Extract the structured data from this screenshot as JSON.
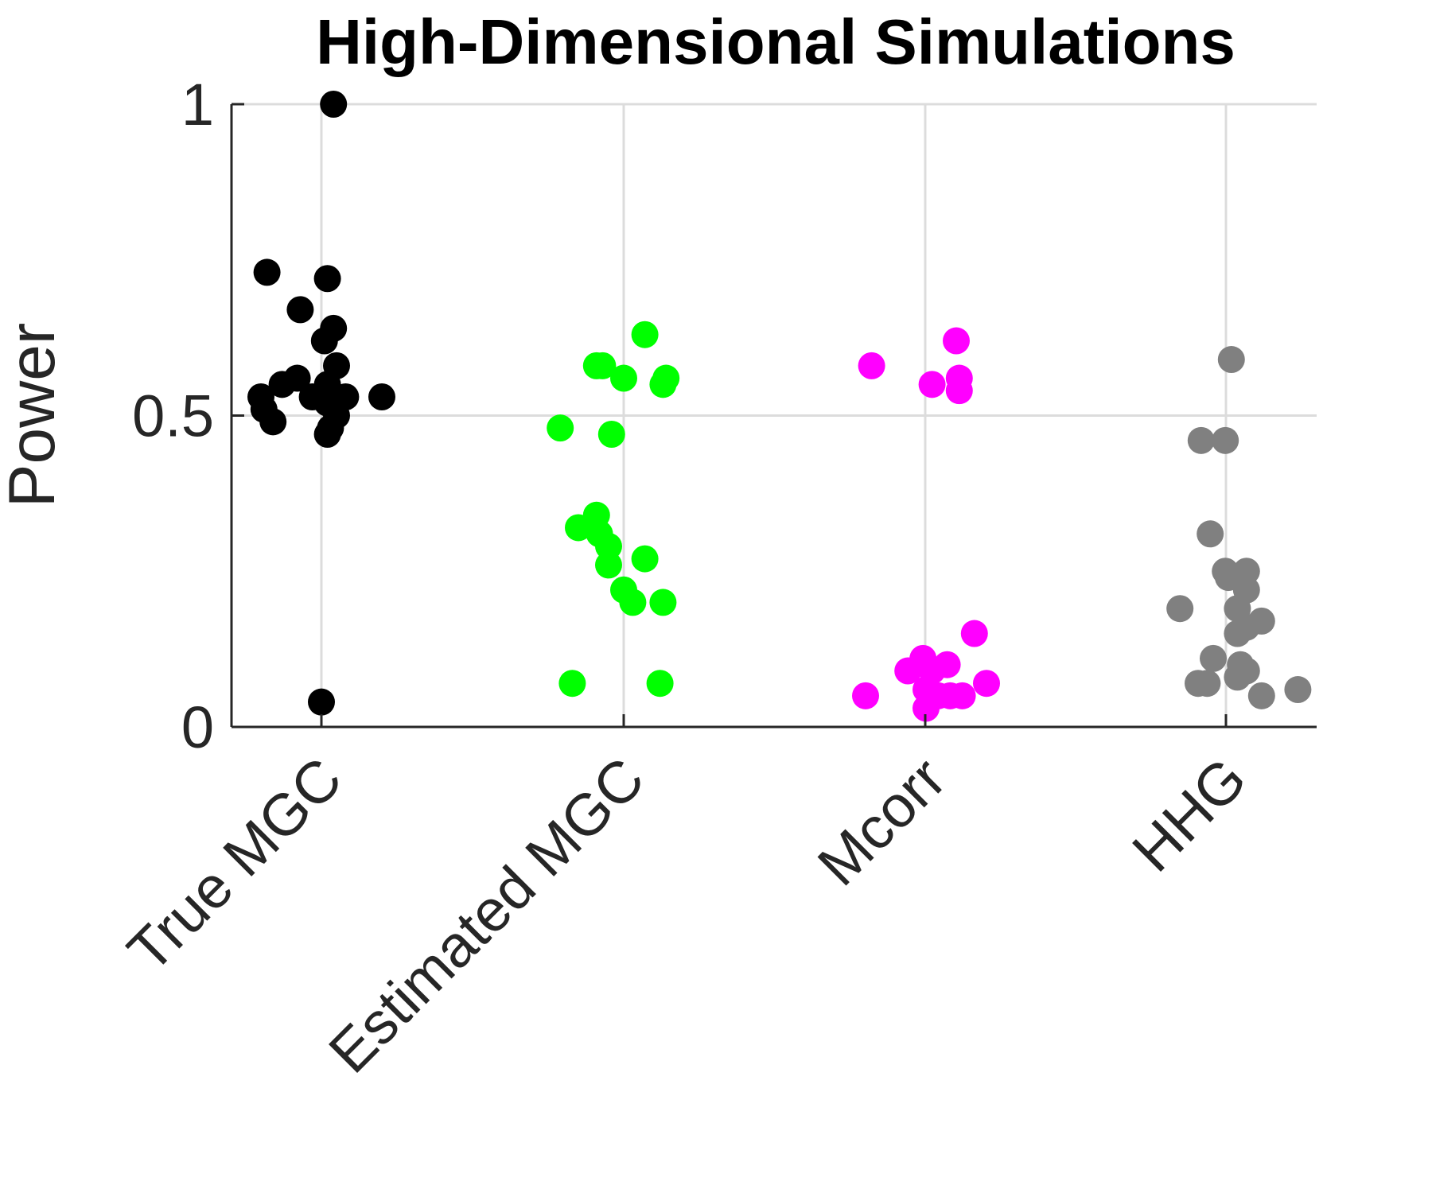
{
  "chart_data": {
    "type": "scatter",
    "title": "High-Dimensional Simulations",
    "xlabel": "",
    "ylabel": "Power",
    "ylim": [
      0,
      1
    ],
    "yticks": [
      "0",
      "0.5",
      "1"
    ],
    "grid": true,
    "categories": [
      "True MGC",
      "Estimated MGC",
      "Mcorr",
      "HHG"
    ],
    "series": [
      {
        "color": "#000000",
        "points": [
          {
            "x": 1.04,
            "y": 1.0
          },
          {
            "x": 0.82,
            "y": 0.73
          },
          {
            "x": 1.02,
            "y": 0.72
          },
          {
            "x": 0.93,
            "y": 0.67
          },
          {
            "x": 1.04,
            "y": 0.64
          },
          {
            "x": 1.01,
            "y": 0.62
          },
          {
            "x": 1.05,
            "y": 0.58
          },
          {
            "x": 0.92,
            "y": 0.56
          },
          {
            "x": 0.87,
            "y": 0.55
          },
          {
            "x": 1.02,
            "y": 0.55
          },
          {
            "x": 0.8,
            "y": 0.53
          },
          {
            "x": 1.08,
            "y": 0.53
          },
          {
            "x": 1.2,
            "y": 0.53
          },
          {
            "x": 0.97,
            "y": 0.53
          },
          {
            "x": 1.02,
            "y": 0.52
          },
          {
            "x": 0.81,
            "y": 0.51
          },
          {
            "x": 1.05,
            "y": 0.5
          },
          {
            "x": 0.84,
            "y": 0.49
          },
          {
            "x": 1.03,
            "y": 0.48
          },
          {
            "x": 1.02,
            "y": 0.47
          },
          {
            "x": 1.0,
            "y": 0.04
          }
        ]
      },
      {
        "color": "#00ff00",
        "points": [
          {
            "x": 2.07,
            "y": 0.63
          },
          {
            "x": 1.91,
            "y": 0.58
          },
          {
            "x": 1.93,
            "y": 0.58
          },
          {
            "x": 2.0,
            "y": 0.56
          },
          {
            "x": 2.14,
            "y": 0.56
          },
          {
            "x": 2.13,
            "y": 0.55
          },
          {
            "x": 1.79,
            "y": 0.48
          },
          {
            "x": 1.96,
            "y": 0.47
          },
          {
            "x": 1.91,
            "y": 0.34
          },
          {
            "x": 1.85,
            "y": 0.32
          },
          {
            "x": 1.92,
            "y": 0.31
          },
          {
            "x": 1.95,
            "y": 0.29
          },
          {
            "x": 2.07,
            "y": 0.27
          },
          {
            "x": 1.95,
            "y": 0.26
          },
          {
            "x": 2.0,
            "y": 0.22
          },
          {
            "x": 2.03,
            "y": 0.2
          },
          {
            "x": 2.13,
            "y": 0.2
          },
          {
            "x": 1.83,
            "y": 0.07
          },
          {
            "x": 2.12,
            "y": 0.07
          }
        ]
      },
      {
        "color": "#ff00ff",
        "points": [
          {
            "x": 3.1,
            "y": 0.62
          },
          {
            "x": 2.82,
            "y": 0.58
          },
          {
            "x": 3.11,
            "y": 0.56
          },
          {
            "x": 3.02,
            "y": 0.55
          },
          {
            "x": 3.11,
            "y": 0.54
          },
          {
            "x": 3.16,
            "y": 0.15
          },
          {
            "x": 2.99,
            "y": 0.11
          },
          {
            "x": 3.07,
            "y": 0.1
          },
          {
            "x": 2.94,
            "y": 0.09
          },
          {
            "x": 3.02,
            "y": 0.09
          },
          {
            "x": 3.2,
            "y": 0.07
          },
          {
            "x": 3.0,
            "y": 0.06
          },
          {
            "x": 3.04,
            "y": 0.05
          },
          {
            "x": 3.08,
            "y": 0.05
          },
          {
            "x": 3.12,
            "y": 0.05
          },
          {
            "x": 2.8,
            "y": 0.05
          },
          {
            "x": 3.0,
            "y": 0.03
          }
        ]
      },
      {
        "color": "#808080",
        "points": [
          {
            "x": 4.01,
            "y": 0.59
          },
          {
            "x": 3.91,
            "y": 0.46
          },
          {
            "x": 3.99,
            "y": 0.46
          },
          {
            "x": 3.94,
            "y": 0.31
          },
          {
            "x": 3.99,
            "y": 0.25
          },
          {
            "x": 4.06,
            "y": 0.25
          },
          {
            "x": 4.0,
            "y": 0.24
          },
          {
            "x": 4.06,
            "y": 0.22
          },
          {
            "x": 3.84,
            "y": 0.19
          },
          {
            "x": 4.03,
            "y": 0.19
          },
          {
            "x": 4.11,
            "y": 0.17
          },
          {
            "x": 4.06,
            "y": 0.16
          },
          {
            "x": 4.03,
            "y": 0.15
          },
          {
            "x": 3.95,
            "y": 0.11
          },
          {
            "x": 4.04,
            "y": 0.1
          },
          {
            "x": 4.06,
            "y": 0.09
          },
          {
            "x": 3.9,
            "y": 0.07
          },
          {
            "x": 3.93,
            "y": 0.07
          },
          {
            "x": 4.03,
            "y": 0.08
          },
          {
            "x": 4.23,
            "y": 0.06
          },
          {
            "x": 4.11,
            "y": 0.05
          }
        ]
      }
    ]
  }
}
